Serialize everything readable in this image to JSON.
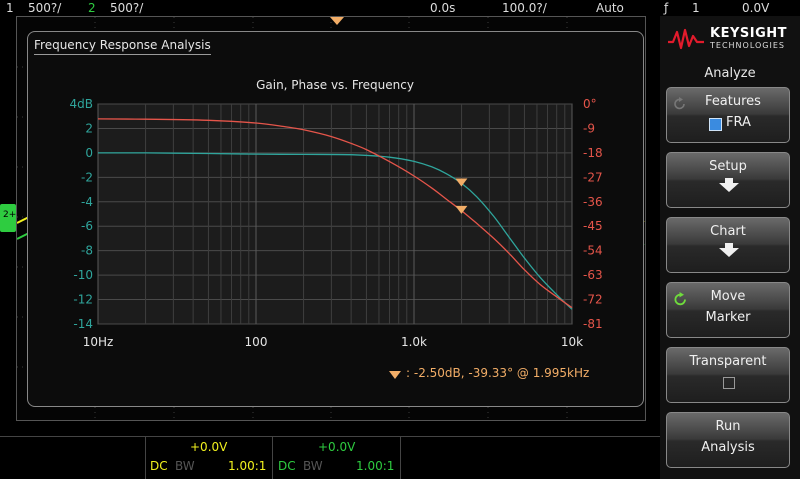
{
  "topbar": {
    "ch1_num": "1",
    "ch1_scale": "500?/",
    "ch2_num": "2",
    "ch2_scale": "500?/",
    "time_pos": "0.0s",
    "time_scale": "100.0?/",
    "trigger_mode": "Auto",
    "trig_icon": "ƒ",
    "trig_ch": "1",
    "trig_level": "0.0V"
  },
  "fra": {
    "panel_title": "Frequency Response Analysis",
    "chart_title": "Gain, Phase vs. Frequency",
    "marker_readout": ":  -2.50dB, -39.33° @ 1.995kHz",
    "marker_icon": "triangle-marker"
  },
  "chart_data": {
    "type": "line",
    "title": "Gain, Phase vs. Frequency",
    "x_scale": "log",
    "xlim": [
      10,
      10000
    ],
    "x_ticks": [
      "10Hz",
      "100",
      "1.0k",
      "10k"
    ],
    "x_tick_values": [
      10,
      100,
      1000,
      10000
    ],
    "y_left_ticks": [
      "4dB",
      "2",
      "0",
      "-2",
      "-4",
      "-6",
      "-8",
      "-10",
      "-12",
      "-14"
    ],
    "y_left_values": [
      4,
      2,
      0,
      -2,
      -4,
      -6,
      -8,
      -10,
      -12,
      -14
    ],
    "ylim_left": [
      -14,
      4
    ],
    "y_right_ticks": [
      "0°",
      "-9",
      "-18",
      "-27",
      "-36",
      "-45",
      "-54",
      "-63",
      "-72",
      "-81"
    ],
    "y_right_values": [
      0,
      -9,
      -18,
      -27,
      -36,
      -45,
      -54,
      -63,
      -72,
      -81
    ],
    "ylim_right": [
      -81,
      0
    ],
    "grid": true,
    "series": [
      {
        "axis": "left",
        "color": "#2fa59c",
        "x": [
          10,
          20,
          50,
          100,
          200,
          400,
          700,
          1000,
          1300,
          1600,
          2000,
          2500,
          3200,
          4000,
          5000,
          6300,
          8000,
          10000
        ],
        "values": [
          0.0,
          0.0,
          -0.05,
          -0.1,
          -0.12,
          -0.15,
          -0.35,
          -0.7,
          -1.15,
          -1.7,
          -2.5,
          -3.6,
          -5.2,
          -6.9,
          -8.6,
          -10.2,
          -11.6,
          -12.8
        ]
      },
      {
        "axis": "right",
        "color": "#e5554a",
        "x": [
          10,
          20,
          50,
          100,
          150,
          200,
          300,
          400,
          500,
          700,
          1000,
          1300,
          1600,
          2000,
          2500,
          3200,
          4000,
          5000,
          6300,
          8000,
          10000
        ],
        "values": [
          -5.5,
          -5.6,
          -6,
          -7,
          -8.3,
          -9.5,
          -12,
          -14.5,
          -16.8,
          -21.2,
          -26.5,
          -31,
          -35,
          -39.3,
          -44,
          -49.5,
          -55,
          -61,
          -66.5,
          -71,
          -75
        ]
      }
    ],
    "markers": [
      {
        "x": 1995,
        "y": -2.5,
        "axis": "left",
        "color": "#f2ad67"
      },
      {
        "x": 1995,
        "y": -39.33,
        "axis": "right",
        "color": "#f2ad67"
      }
    ]
  },
  "sidebar": {
    "brand": "KEYSIGHT",
    "brand_sub": "TECHNOLOGIES",
    "menu_title": "Analyze",
    "buttons": {
      "features_label": "Features",
      "features_value": "FRA",
      "setup_label": "Setup",
      "chart_label": "Chart",
      "move_label1": "Move",
      "move_label2": "Marker",
      "transparent_label": "Transparent",
      "run_label1": "Run",
      "run_label2": "Analysis"
    }
  },
  "bottom": {
    "ch1_offset": "+0.0V",
    "ch1_coupling": "DC",
    "ch1_bw": "BW",
    "ch1_probe": "1.00:1",
    "ch2_offset": "+0.0V",
    "ch2_coupling": "DC",
    "ch2_bw": "BW",
    "ch2_probe": "1.00:1"
  },
  "colors": {
    "ch1": "#f2f21e",
    "ch2": "#2ecc40",
    "gain": "#2fa59c",
    "phase": "#e5554a",
    "marker": "#f2ad67",
    "accent_blue": "#3a8be0"
  }
}
